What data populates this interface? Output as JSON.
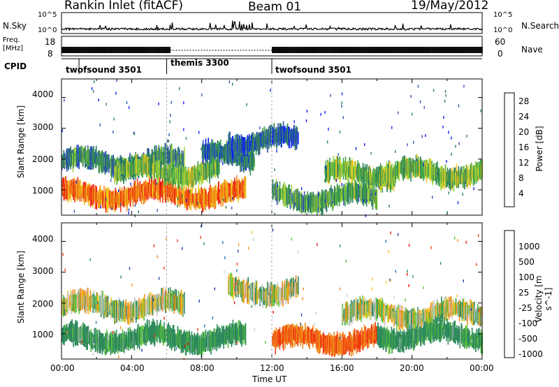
{
  "header": {
    "title": "Rankin Inlet (fitACF)",
    "beam": "Beam 01",
    "date": "19/May/2012"
  },
  "noise_panel": {
    "left_label": "N.Sky",
    "left_ticks": [
      "10^5",
      "10^0"
    ],
    "right_ticks": [
      "10^5",
      "10^0"
    ],
    "right_label": "N.Search"
  },
  "freq_panel": {
    "left_label_1": "Freq.",
    "left_label_2": "[MHz]",
    "left_ticks": [
      "18",
      "8"
    ],
    "right_ticks": [
      "60",
      "0"
    ],
    "right_label": "Nave"
  },
  "cpid": {
    "label": "CPID",
    "segments": [
      {
        "name": "twofsound 3501",
        "start_ut": 1.0,
        "end_ut": 6.0
      },
      {
        "name": "themis 3300",
        "start_ut": 6.0,
        "end_ut": 12.0
      },
      {
        "name": "twofsound 3501",
        "start_ut": 12.0,
        "end_ut": 24.0
      }
    ]
  },
  "x_axis": {
    "label": "Time UT",
    "ticks": [
      "00:00",
      "04:00",
      "08:00",
      "12:00",
      "16:00",
      "20:00",
      "00:00"
    ]
  },
  "power_panel": {
    "ylabel": "Slant Range [km]",
    "yticks": [
      "4000",
      "3000",
      "2000",
      "1000"
    ],
    "colorbar_label": "Power [dB]",
    "colorbar_ticks": [
      "28",
      "24",
      "20",
      "16",
      "12",
      "8",
      "4"
    ],
    "colors": [
      "#0a1ef5",
      "#2b4fb6",
      "#2e7d5a",
      "#3fa24a",
      "#9ed23a",
      "#f0c419",
      "#f08a1a",
      "#ef3a12",
      "#e81010"
    ]
  },
  "velocity_panel": {
    "ylabel": "Slant Range [km]",
    "yticks": [
      "4000",
      "3000",
      "2000",
      "1000"
    ],
    "colorbar_label": "Velocity [m s^-1]",
    "colorbar_ticks": [
      "1000",
      "500",
      "100",
      "25",
      "-25",
      "-100",
      "-500",
      "-1000"
    ],
    "colors": [
      "#1a3aa8",
      "#2c6fb0",
      "#2e8a5c",
      "#5cc23a",
      "#c8c8c8",
      "#f0c419",
      "#f08a1a",
      "#ef3a12",
      "#e81010"
    ]
  },
  "chart_data": [
    {
      "type": "heatmap",
      "title": "Power",
      "xlabel": "Time UT",
      "ylabel": "Slant Range [km]",
      "xlim": [
        0,
        24
      ],
      "ylim": [
        180,
        4600
      ],
      "colorbar": {
        "label": "Power [dB]",
        "range": [
          0,
          32
        ]
      },
      "bands": [
        {
          "t_start": 0.0,
          "t_end": 7.0,
          "range_center": 1900,
          "power_db": 10
        },
        {
          "t_start": 0.0,
          "t_end": 10.5,
          "range_center": 850,
          "power_db": 24
        },
        {
          "t_start": 3.0,
          "t_end": 9.0,
          "range_center": 1600,
          "power_db": 14
        },
        {
          "t_start": 8.0,
          "t_end": 11.0,
          "range_center": 2100,
          "power_db": 8
        },
        {
          "t_start": 9.5,
          "t_end": 13.5,
          "range_center": 2600,
          "power_db": 6
        },
        {
          "t_start": 12.0,
          "t_end": 18.0,
          "range_center": 750,
          "power_db": 12
        },
        {
          "t_start": 15.0,
          "t_end": 19.0,
          "range_center": 1500,
          "power_db": 14
        },
        {
          "t_start": 18.0,
          "t_end": 24.0,
          "range_center": 1550,
          "power_db": 14
        }
      ]
    },
    {
      "type": "heatmap",
      "title": "Velocity",
      "xlabel": "Time UT",
      "ylabel": "Slant Range [km]",
      "xlim": [
        0,
        24
      ],
      "ylim": [
        180,
        4600
      ],
      "colorbar": {
        "label": "Velocity [m s^-1]",
        "range": [
          -1000,
          1000
        ]
      },
      "bands": [
        {
          "t_start": 0.0,
          "t_end": 7.0,
          "range_center": 1900,
          "velocity": 0
        },
        {
          "t_start": 0.0,
          "t_end": 10.5,
          "range_center": 850,
          "velocity": 120
        },
        {
          "t_start": 9.5,
          "t_end": 13.5,
          "range_center": 2400,
          "velocity": 0
        },
        {
          "t_start": 12.0,
          "t_end": 18.0,
          "range_center": 800,
          "velocity": -300
        },
        {
          "t_start": 16.0,
          "t_end": 24.0,
          "range_center": 1650,
          "velocity": 0
        },
        {
          "t_start": 18.0,
          "t_end": 24.0,
          "range_center": 950,
          "velocity": 120
        }
      ]
    }
  ]
}
